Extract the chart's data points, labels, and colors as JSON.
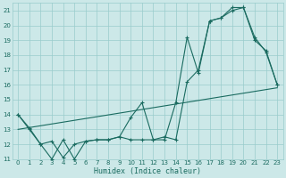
{
  "xlabel": "Humidex (Indice chaleur)",
  "bg_color": "#cce8e8",
  "line_color": "#1a6b60",
  "grid_color": "#99cccc",
  "xlim": [
    -0.5,
    23.5
  ],
  "ylim": [
    11,
    21.5
  ],
  "xticks": [
    0,
    1,
    2,
    3,
    4,
    5,
    6,
    7,
    8,
    9,
    10,
    11,
    12,
    13,
    14,
    15,
    16,
    17,
    18,
    19,
    20,
    21,
    22,
    23
  ],
  "yticks": [
    11,
    12,
    13,
    14,
    15,
    16,
    17,
    18,
    19,
    20,
    21
  ],
  "line_jagged": {
    "x": [
      0,
      1,
      2,
      3,
      4,
      5,
      6,
      7,
      8,
      9,
      10,
      11,
      12,
      13,
      14,
      15,
      16,
      17,
      18,
      19,
      20,
      21,
      22,
      23
    ],
    "y": [
      14,
      13,
      12,
      11,
      12.3,
      11,
      12.2,
      12.3,
      12.3,
      12.5,
      13.8,
      14.8,
      12.3,
      12.3,
      14.8,
      19.2,
      16.8,
      20.3,
      20.5,
      21.2,
      21.2,
      19.2,
      18.2,
      16
    ]
  },
  "line_smooth": {
    "x": [
      0,
      1,
      2,
      3,
      4,
      5,
      6,
      7,
      8,
      9,
      10,
      11,
      12,
      13,
      14,
      15,
      16,
      17,
      18,
      19,
      20,
      21,
      22,
      23
    ],
    "y": [
      14,
      13.1,
      12,
      12.2,
      11.1,
      12.0,
      12.2,
      12.3,
      12.3,
      12.5,
      12.3,
      12.3,
      12.3,
      12.5,
      12.3,
      16.2,
      17.0,
      20.3,
      20.5,
      21.0,
      21.2,
      19.0,
      18.3,
      16
    ]
  },
  "line_ref": {
    "x": [
      0,
      23
    ],
    "y": [
      13,
      15.8
    ]
  }
}
